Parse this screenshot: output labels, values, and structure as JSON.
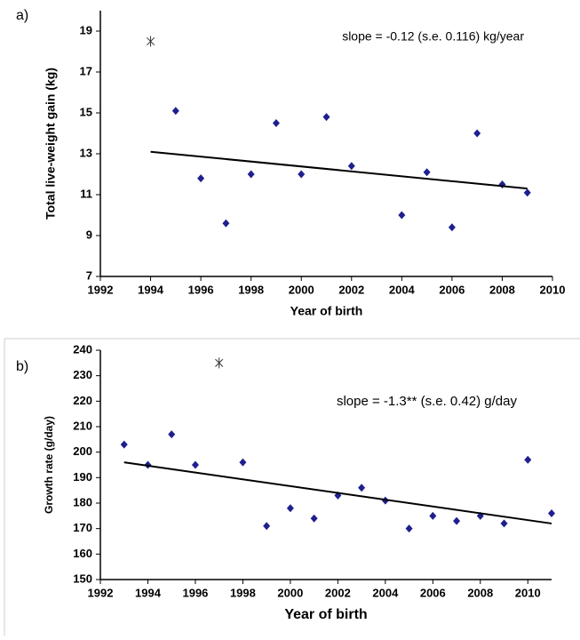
{
  "chart_data": [
    {
      "type": "scatter",
      "panel": "a)",
      "x_label": "Year of birth",
      "y_label": "Total live-weight gain (kg)",
      "annotation": "slope = -0.12 (s.e. 0.116) kg/year",
      "xlim": [
        1992,
        2010
      ],
      "xticks": [
        1992,
        1994,
        1996,
        1998,
        2000,
        2002,
        2004,
        2006,
        2008,
        2010
      ],
      "ylim": [
        7,
        20
      ],
      "yticks": [
        7,
        9,
        11,
        13,
        15,
        17,
        19
      ],
      "series": [
        {
          "marker": "diamond",
          "color": "#1f1f8f",
          "x": [
            1995,
            1996,
            1997,
            1998,
            1999,
            2000,
            2001,
            2002,
            2004,
            2005,
            2006,
            2007,
            2008,
            2009
          ],
          "values": [
            15.1,
            11.8,
            9.6,
            12.0,
            14.5,
            12.0,
            14.8,
            12.4,
            10.0,
            12.1,
            9.4,
            14.0,
            11.5,
            11.1
          ]
        },
        {
          "marker": "asterisk",
          "color": "#333333",
          "x": [
            1994
          ],
          "values": [
            18.5
          ]
        },
        {
          "marker": "line",
          "color": "#000000",
          "x": [
            1994,
            2009
          ],
          "values": [
            13.1,
            11.3
          ]
        }
      ]
    },
    {
      "type": "scatter",
      "panel": "b)",
      "x_label": "Year of birth",
      "y_label": "Growth rate (g/day)",
      "annotation": "slope = -1.3** (s.e. 0.42)  g/day",
      "xlim": [
        1992,
        2011
      ],
      "xticks": [
        1992,
        1994,
        1996,
        1998,
        2000,
        2002,
        2004,
        2006,
        2008,
        2010
      ],
      "ylim": [
        150,
        240
      ],
      "yticks": [
        150,
        160,
        170,
        180,
        190,
        200,
        210,
        220,
        230,
        240
      ],
      "series": [
        {
          "marker": "diamond",
          "color": "#1f1f8f",
          "x": [
            1993,
            1994,
            1995,
            1996,
            1998,
            1999,
            2000,
            2001,
            2002,
            2003,
            2004,
            2005,
            2006,
            2007,
            2008,
            2009,
            2010,
            2011
          ],
          "values": [
            203,
            195,
            207,
            195,
            196,
            171,
            178,
            174,
            183,
            186,
            181,
            170,
            175,
            173,
            175,
            172,
            197,
            176
          ]
        },
        {
          "marker": "asterisk",
          "color": "#333333",
          "x": [
            1997
          ],
          "values": [
            235
          ]
        },
        {
          "marker": "line",
          "color": "#000000",
          "x": [
            1993,
            2011
          ],
          "values": [
            196,
            172
          ]
        }
      ]
    }
  ]
}
